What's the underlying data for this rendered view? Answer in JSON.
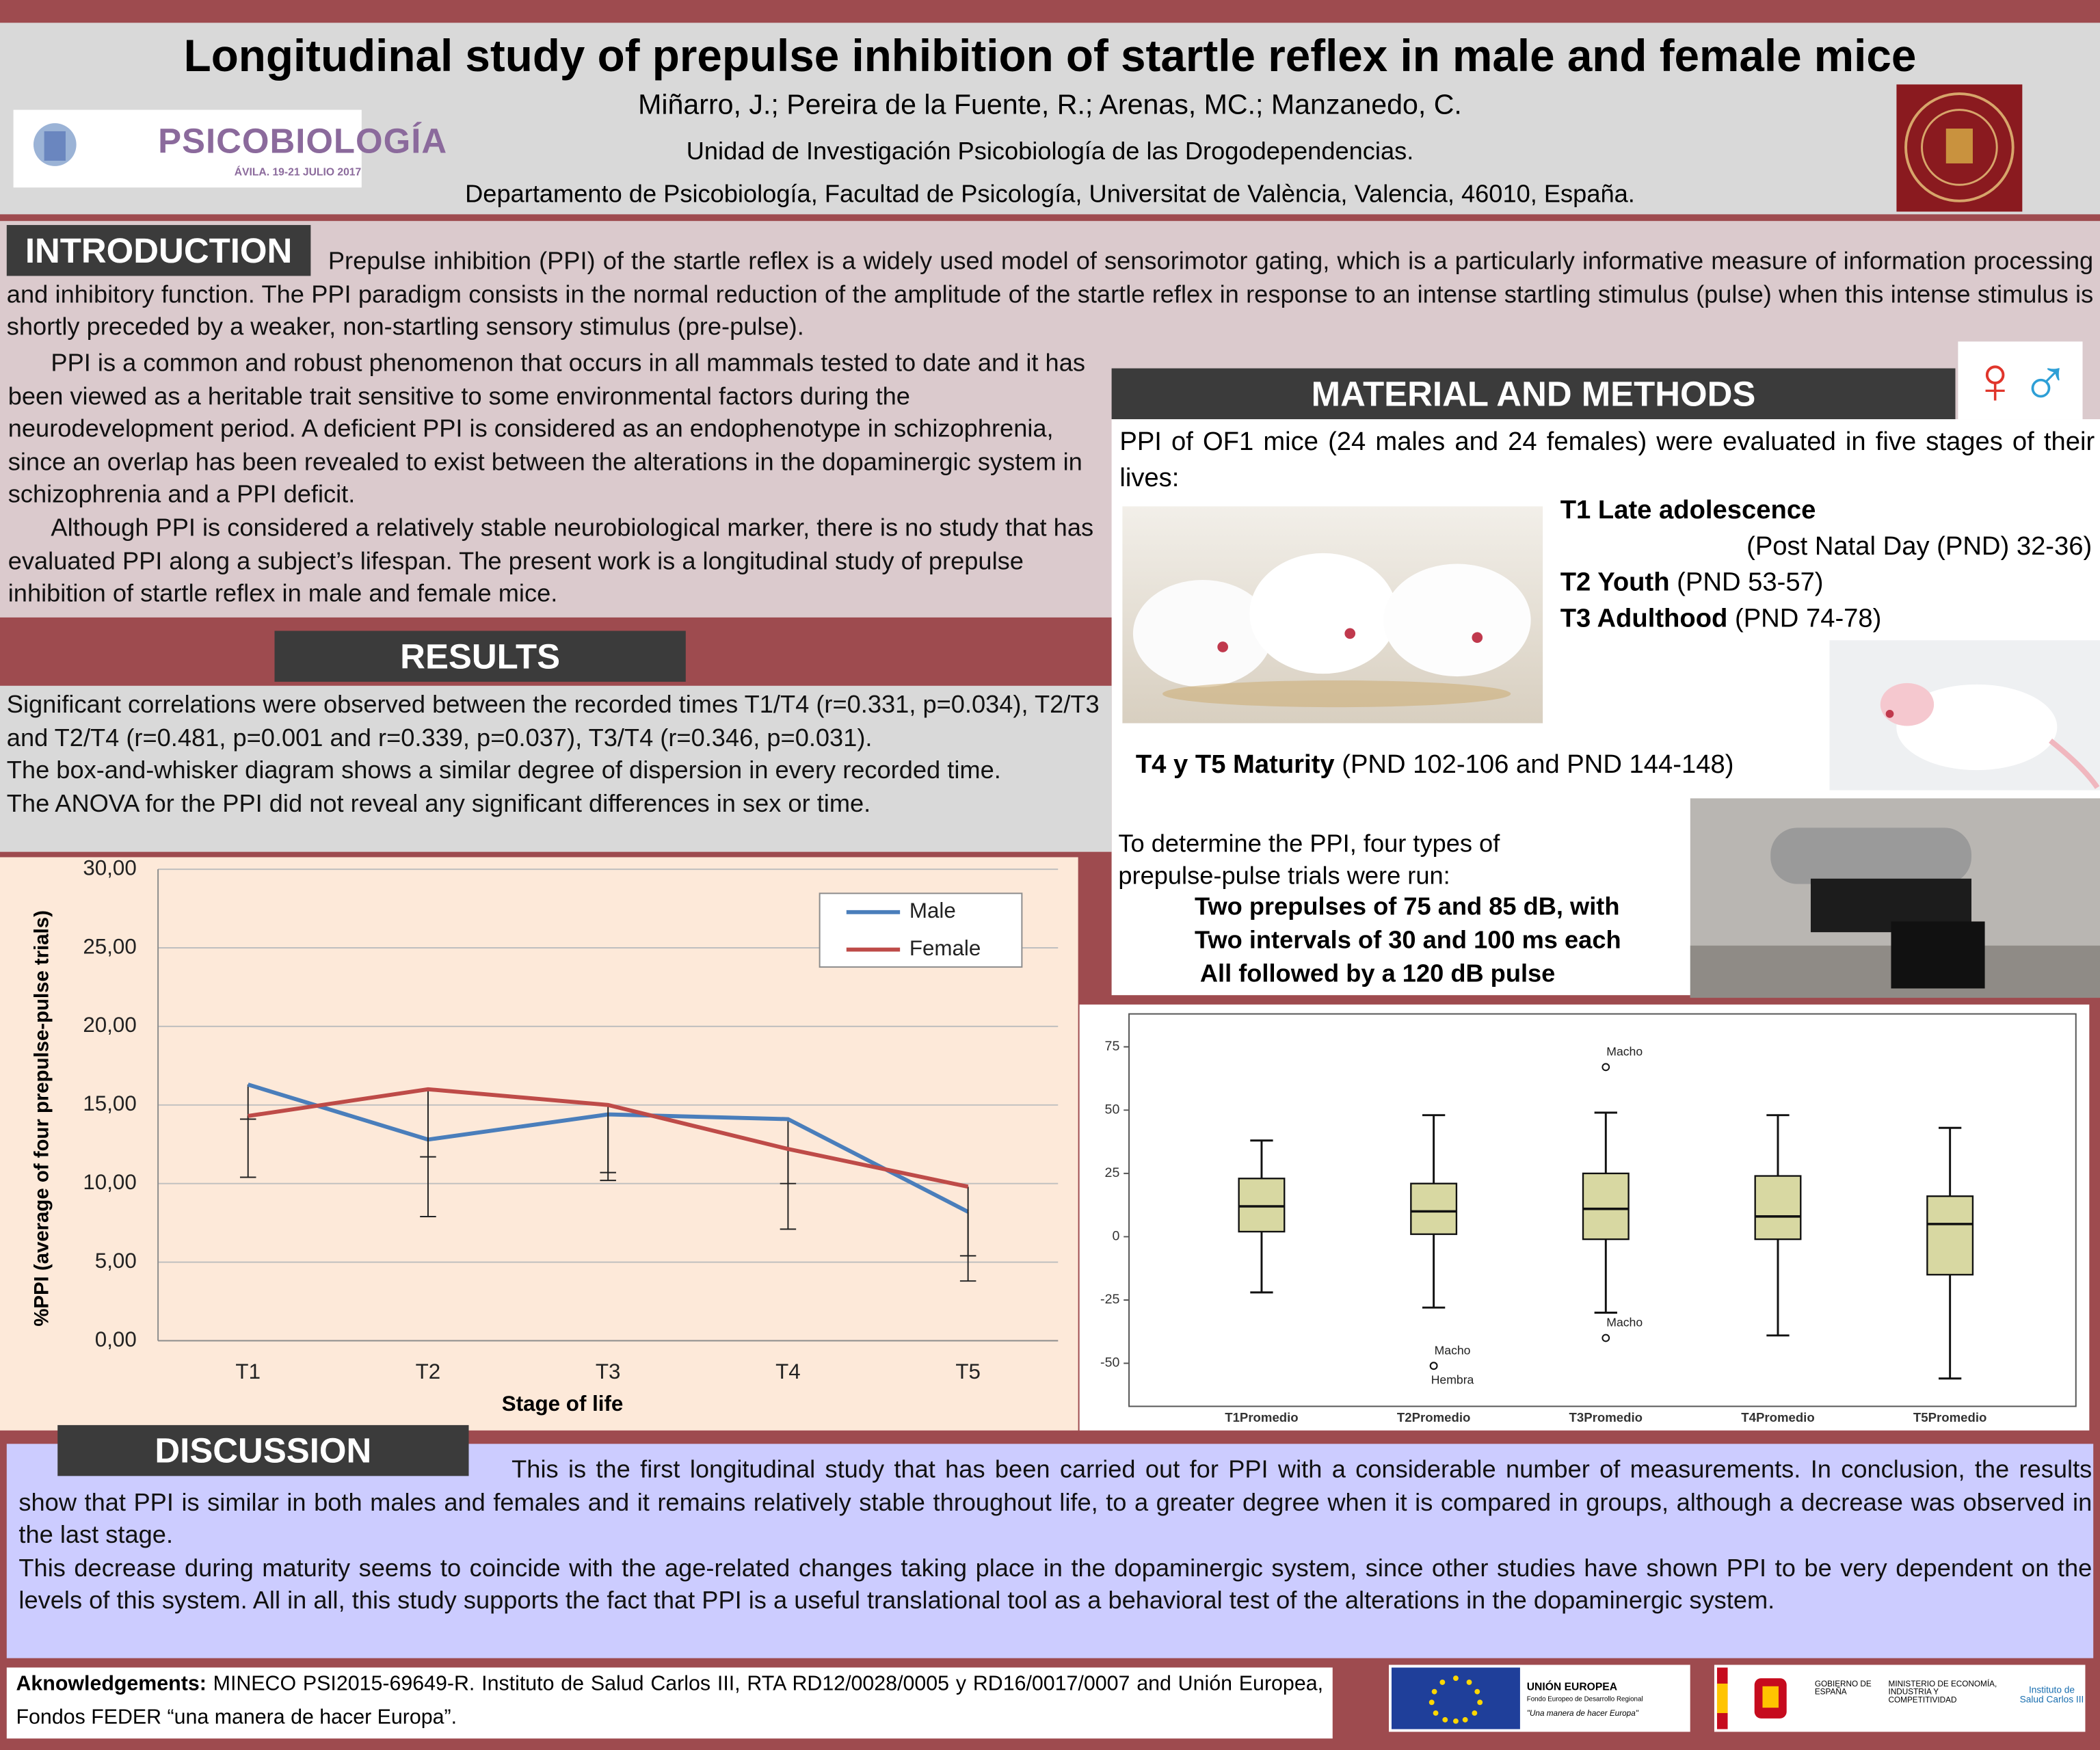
{
  "header": {
    "title": "Longitudinal study of prepulse inhibition of startle reflex in male and female mice",
    "authors": "Miñarro, J.; Pereira de la Fuente, R.;  Arenas, MC.; Manzanedo, C.",
    "affiliation_1": "Unidad de Investigación Psicobiología de las Drogodependencias.",
    "affiliation_2": "Departamento de Psicobiología, Facultad de Psicología, Universitat de València, Valencia, 46010, España.",
    "congress_logo": {
      "name": "PSICOBIOLOGÍA",
      "caption": "ÁVILA. 19-21 JULIO 2017"
    }
  },
  "introduction": {
    "heading": "INTRODUCTION",
    "paragraphs": [
      "Prepulse inhibition (PPI) of the startle reflex is a widely used model of sensorimotor gating, which is a particularly informative measure of information processing and inhibitory function. The PPI paradigm consists in the normal reduction of the amplitude of the startle reflex in response to an intense startling stimulus (pulse) when this intense stimulus is shortly preceded by a weaker, non-startling sensory stimulus (pre-pulse).",
      "PPI is a common and robust phenomenon that occurs in all mammals tested to date and it has been viewed as a heritable trait sensitive to some environmental factors during the neurodevelopment period. A deficient PPI is considered as an endophenotype in schizophrenia, since an overlap has been revealed to exist between the alterations in the dopaminergic system in schizophrenia and a PPI deficit.",
      "Although PPI is considered a relatively stable neurobiological marker, there is no study that has evaluated PPI along a subject’s lifespan. The present work is a longitudinal study of prepulse inhibition of startle reflex in male and female mice."
    ]
  },
  "materials": {
    "heading": "MATERIAL AND METHODS",
    "symbols": [
      "♀",
      "♂"
    ],
    "intro": "PPI of OF1 mice (24 males and 24 females)  were evaluated in five stages of their lives:",
    "stages": [
      {
        "label": "T1 Late adolescence",
        "detail": "(Post Natal Day (PND) 32-36)"
      },
      {
        "label": "T2 Youth",
        "detail": "(PND 53-57)"
      },
      {
        "label": "T3 Adulthood",
        "detail": "(PND 74-78)"
      },
      {
        "label": "T4 y T5  Maturity",
        "detail": "(PND 102-106 and  PND 144-148)"
      }
    ],
    "trials_intro": "To determine the PPI, four types of prepulse-pulse trials were run:",
    "trials": [
      "Two prepulses of 75 and 85 dB, with",
      "Two intervals of 30 and 100 ms each",
      "All followed by a 120 dB pulse"
    ]
  },
  "results": {
    "heading": "RESULTS",
    "paragraphs": [
      "Significant correlations were observed between the recorded times T1/T4 (r=0.331, p=0.034), T2/T3 and T2/T4 (r=0.481, p=0.001 and r=0.339, p=0.037), T3/T4 (r=0.346, p=0.031).",
      "The box-and-whisker diagram shows a similar degree of dispersion in every recorded time.",
      "The ANOVA for the PPI did not reveal any significant differences in sex or time."
    ]
  },
  "chart_data": [
    {
      "type": "line",
      "ylabel": "%PPI (average of four prepulse-pulse trials)",
      "xlabel": "Stage of life",
      "categories": [
        "T1",
        "T2",
        "T3",
        "T4",
        "T5"
      ],
      "series": [
        {
          "name": "Male",
          "color": "#4a7ebb",
          "values": [
            16.3,
            12.8,
            14.4,
            14.1,
            8.2
          ],
          "errors": [
            2.2,
            4.9,
            4.2,
            7.0,
            2.8
          ]
        },
        {
          "name": "Female",
          "color": "#be4b48",
          "values": [
            14.3,
            16.0,
            15.0,
            12.2,
            9.8
          ],
          "errors": [
            3.9,
            4.3,
            4.3,
            2.2,
            6.0
          ]
        }
      ],
      "ylim": [
        0,
        30
      ],
      "yticks": [
        {
          "value": 0,
          "label": "0,00"
        },
        {
          "value": 5,
          "label": "5,00"
        },
        {
          "value": 10,
          "label": "10,00"
        },
        {
          "value": 15,
          "label": "15,00"
        },
        {
          "value": 20,
          "label": "20,00"
        },
        {
          "value": 25,
          "label": "25,00"
        },
        {
          "value": 30,
          "label": "30,00"
        }
      ],
      "grid": true,
      "legend": "top-right"
    },
    {
      "type": "box",
      "categories": [
        "T1Promedio",
        "T2Promedio",
        "T3Promedio",
        "T4Promedio",
        "T5Promedio"
      ],
      "color": "#d8d8a2",
      "boxes": [
        {
          "min": -22,
          "q1": 2,
          "median": 12,
          "q3": 23,
          "max": 38,
          "outliers": []
        },
        {
          "min": -28,
          "q1": 1,
          "median": 10,
          "q3": 21,
          "max": 48,
          "outliers": [
            {
              "value": -51,
              "label": "Macho"
            },
            {
              "value": -51,
              "label": "Hembra"
            }
          ]
        },
        {
          "min": -30,
          "q1": -1,
          "median": 11,
          "q3": 25,
          "max": 49,
          "outliers": [
            {
              "value": 67,
              "label": "Macho"
            },
            {
              "value": -40,
              "label": "Macho"
            }
          ]
        },
        {
          "min": -39,
          "q1": -1,
          "median": 8,
          "q3": 24,
          "max": 48,
          "outliers": []
        },
        {
          "min": -56,
          "q1": -15,
          "median": 5,
          "q3": 16,
          "max": 43,
          "outliers": []
        }
      ],
      "ylim": [
        -67,
        88
      ],
      "yticks": [
        -50,
        -25,
        0,
        25,
        50,
        75
      ],
      "grid": false
    }
  ],
  "discussion": {
    "heading": "DISCUSSION",
    "paragraphs": [
      "This is the first longitudinal study that has been carried out for PPI with a considerable number of measurements. In conclusion, the results show that PPI is similar in both males and females and it remains relatively stable throughout life, to a greater degree when it is compared in groups, although a decrease was observed in the last stage.",
      "This decrease during maturity seems to coincide with the age-related changes taking place in the dopaminergic system, since other studies have shown PPI to be very dependent on the levels of this system. All in all, this study supports the fact that PPI is a useful translational tool as a behavioral test of the alterations in the dopaminergic system."
    ]
  },
  "acknowledgements": {
    "label": "Aknowledgements:",
    "text": "MINECO PSI2015-69649-R. Instituto de Salud Carlos III, RTA RD12/0028/0005 y RD16/0017/0007 and Unión Europea, Fondos FEDER “una manera de hacer Europa”."
  },
  "funders": {
    "eu_name": "UNIÓN EUROPEA",
    "eu_fund": "Fondo Europeo de Desarrollo Regional",
    "eu_motto": "\"Una manera de hacer Europa\"",
    "government": "GOBIERNO DE ESPAÑA",
    "ministry": "MINISTERIO DE ECONOMÍA, INDUSTRIA Y COMPETITIVIDAD",
    "institute": "Instituto de Salud Carlos III"
  }
}
